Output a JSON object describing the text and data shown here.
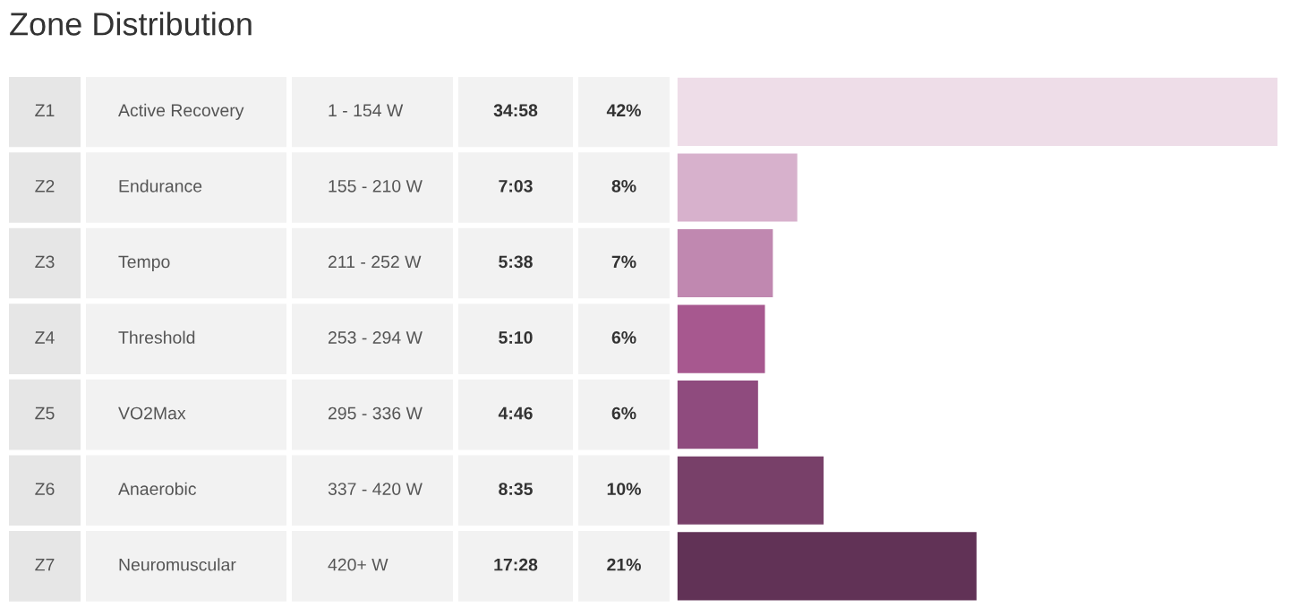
{
  "chart_data": {
    "type": "bar",
    "orientation": "horizontal",
    "title": "Zone Distribution",
    "categories": [
      "Z1",
      "Z2",
      "Z3",
      "Z4",
      "Z5",
      "Z6",
      "Z7"
    ],
    "values": [
      34.97,
      7.05,
      5.63,
      5.17,
      4.77,
      8.58,
      17.47
    ],
    "value_labels": [
      "34:58",
      "7:03",
      "5:38",
      "5:10",
      "4:46",
      "8:35",
      "17:28"
    ],
    "colors": [
      "#eedde8",
      "#d7b1cc",
      "#c088b0",
      "#a7588f",
      "#8f4b7e",
      "#784069",
      "#613256"
    ],
    "annotations": [
      "Active Recovery",
      "1 - 154 W",
      "42%",
      "Endurance",
      "155 - 210 W",
      "8%",
      "Tempo",
      "211 - 252 W",
      "7%",
      "Threshold",
      "253 - 294 W",
      "6%",
      "VO2Max",
      "295 - 336 W",
      "6%",
      "Anaerobic",
      "337 - 420 W",
      "10%",
      "Neuromuscular",
      "420+ W",
      "21%"
    ]
  }
}
